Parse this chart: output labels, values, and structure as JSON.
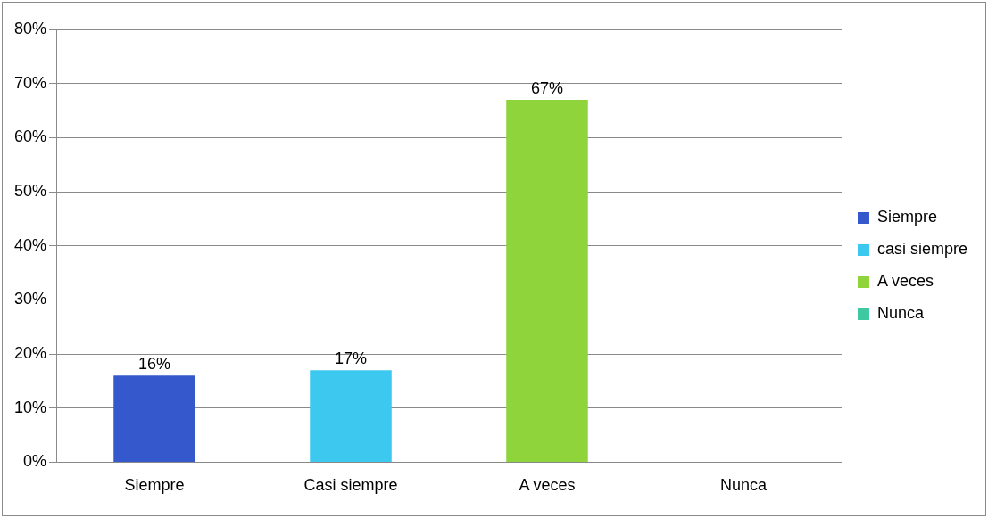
{
  "chart_data": {
    "type": "bar",
    "categories": [
      "Siempre",
      "Casi siempre",
      "A veces",
      "Nunca"
    ],
    "series": [
      {
        "name": "Siempre",
        "color": "#3558cc",
        "values": [
          16,
          null,
          null,
          null
        ],
        "value_labels": [
          "16%",
          null,
          null,
          null
        ]
      },
      {
        "name": "casi siempre",
        "color": "#3cc8ef",
        "values": [
          null,
          17,
          null,
          null
        ],
        "value_labels": [
          null,
          "17%",
          null,
          null
        ]
      },
      {
        "name": "A veces",
        "color": "#8ed43a",
        "values": [
          null,
          null,
          67,
          null
        ],
        "value_labels": [
          null,
          null,
          "67%",
          null
        ]
      },
      {
        "name": "Nunca",
        "color": "#3ec9a0",
        "values": [
          null,
          null,
          null,
          0
        ],
        "value_labels": [
          null,
          null,
          null,
          null
        ]
      }
    ],
    "ylim": [
      0,
      80
    ],
    "yticks": [
      {
        "value": 0,
        "label": "0%"
      },
      {
        "value": 10,
        "label": "10%"
      },
      {
        "value": 20,
        "label": "20%"
      },
      {
        "value": 30,
        "label": "30%"
      },
      {
        "value": 40,
        "label": "40%"
      },
      {
        "value": 50,
        "label": "50%"
      },
      {
        "value": 60,
        "label": "60%"
      },
      {
        "value": 70,
        "label": "70%"
      },
      {
        "value": 80,
        "label": "80%"
      }
    ],
    "grid": "y",
    "legend": "right"
  }
}
